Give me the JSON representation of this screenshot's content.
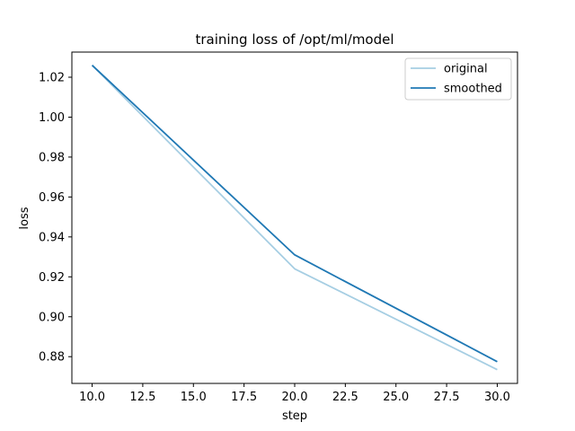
{
  "chart_data": {
    "type": "line",
    "title": "training loss of /opt/ml/model",
    "xlabel": "step",
    "ylabel": "loss",
    "xlim": [
      9.0,
      31.0
    ],
    "ylim": [
      0.8666,
      1.0326
    ],
    "xticks": [
      10.0,
      12.5,
      15.0,
      17.5,
      20.0,
      22.5,
      25.0,
      27.5,
      30.0
    ],
    "xtick_labels": [
      "10.0",
      "12.5",
      "15.0",
      "17.5",
      "20.0",
      "22.5",
      "25.0",
      "27.5",
      "30.0"
    ],
    "yticks": [
      0.88,
      0.9,
      0.92,
      0.94,
      0.96,
      0.98,
      1.0,
      1.02
    ],
    "ytick_labels": [
      "0.88",
      "0.90",
      "0.92",
      "0.94",
      "0.96",
      "0.98",
      "1.00",
      "1.02"
    ],
    "grid": false,
    "legend_position": "top-right",
    "series": [
      {
        "name": "original",
        "color": "#a6cee3",
        "x": [
          10,
          20,
          30
        ],
        "y": [
          1.026,
          0.924,
          0.8735
        ]
      },
      {
        "name": "smoothed",
        "color": "#1f78b4",
        "x": [
          10,
          20,
          30
        ],
        "y": [
          1.026,
          0.931,
          0.8775
        ]
      }
    ]
  }
}
